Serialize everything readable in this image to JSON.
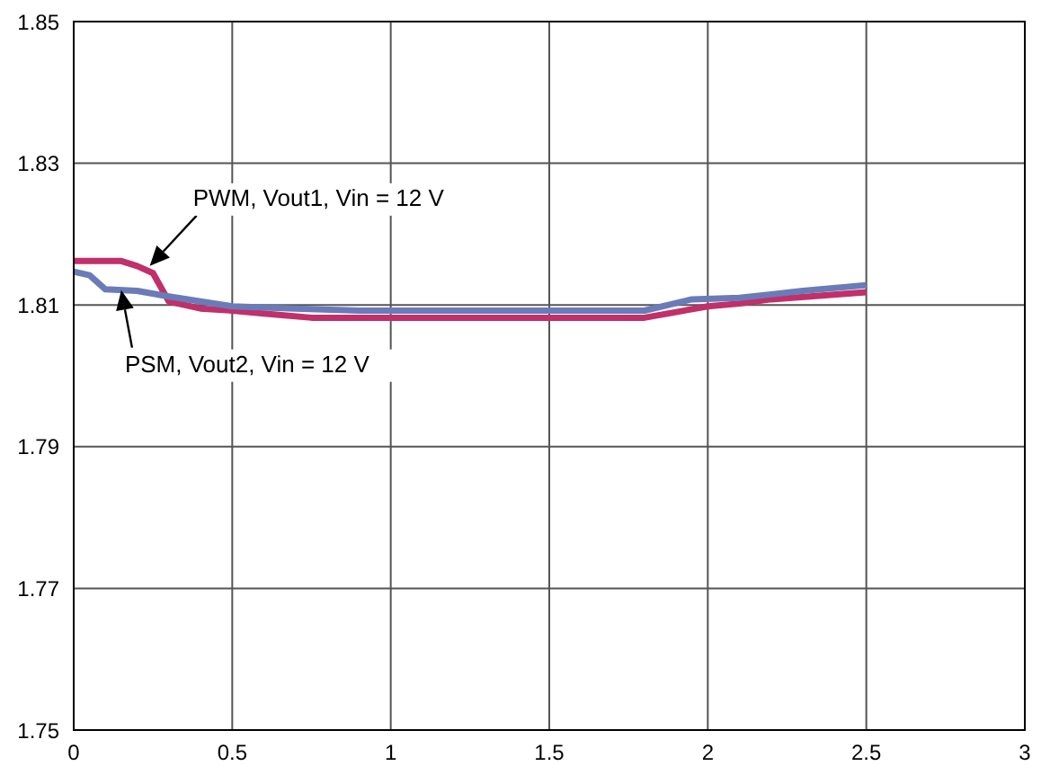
{
  "chart_data": {
    "type": "line",
    "xlim": [
      0,
      3
    ],
    "xticks": [
      0,
      0.5,
      1,
      1.5,
      2,
      2.5,
      3
    ],
    "ylim": [
      1.75,
      1.85
    ],
    "yticks": [
      1.75,
      1.77,
      1.79,
      1.81,
      1.83,
      1.85
    ],
    "grid": true,
    "marker": "none",
    "line_style": "solid",
    "series": [
      {
        "color": "#c0306a",
        "x": [
          0,
          0.15,
          0.2,
          0.25,
          0.3,
          0.4,
          0.5,
          0.6,
          0.75,
          1,
          1.5,
          1.8,
          1.9,
          2,
          2.1,
          2.2,
          2.5
        ],
        "values": [
          1.8162,
          1.8162,
          1.8155,
          1.8145,
          1.8105,
          1.8095,
          1.8092,
          1.8088,
          1.8082,
          1.8082,
          1.8082,
          1.8082,
          1.809,
          1.8098,
          1.8102,
          1.8108,
          1.8118
        ]
      },
      {
        "color": "#6a7bb8",
        "x": [
          0,
          0.05,
          0.1,
          0.2,
          0.3,
          0.4,
          0.5,
          0.7,
          0.9,
          1.2,
          1.5,
          1.8,
          1.95,
          2.1,
          2.2,
          2.3,
          2.5
        ],
        "values": [
          1.8147,
          1.8142,
          1.8122,
          1.812,
          1.8112,
          1.8105,
          1.8098,
          1.8095,
          1.8092,
          1.8092,
          1.8092,
          1.8092,
          1.8108,
          1.811,
          1.8115,
          1.812,
          1.8128
        ]
      }
    ],
    "annotations": [
      {
        "text": "PWM, Vout1, Vin = 12 V",
        "x": 0.24,
        "y": 1.8155
      },
      {
        "text": "PSM, Vout2, Vin = 12 V",
        "x": 0.15,
        "y": 1.8121
      }
    ]
  }
}
